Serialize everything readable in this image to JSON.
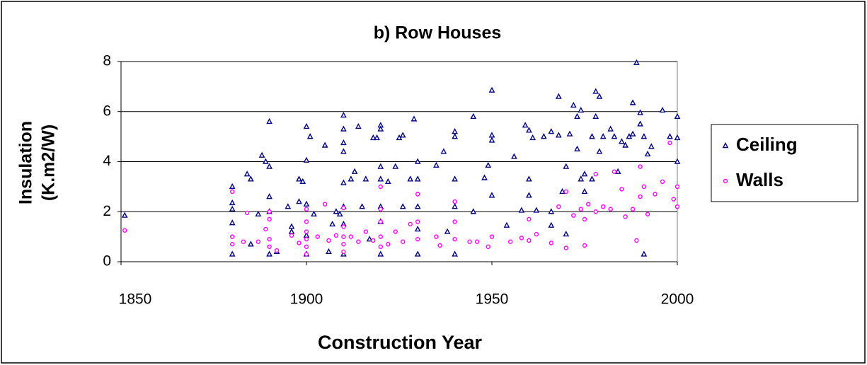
{
  "chart_data": {
    "type": "scatter",
    "title": "b) Row Houses",
    "xlabel": "Construction Year",
    "ylabel": [
      "Insulation",
      "(K.m2/W)"
    ],
    "xlim": [
      1850,
      2000
    ],
    "xticks": [
      1850,
      1900,
      1950,
      2000
    ],
    "ylim": [
      0,
      8
    ],
    "yticks": [
      0,
      2,
      4,
      6,
      8
    ],
    "grid": true,
    "legend": "right",
    "series": [
      {
        "name": "Ceiling",
        "color": "#000080",
        "marker": "triangle",
        "x": [
          1851,
          1880,
          1880,
          1880,
          1880,
          1880,
          1884,
          1885,
          1885,
          1887,
          1888,
          1889,
          1890,
          1890,
          1890,
          1890,
          1890,
          1892,
          1895,
          1896,
          1896,
          1898,
          1898,
          1899,
          1900,
          1900,
          1900,
          1900,
          1900,
          1901,
          1902,
          1905,
          1906,
          1907,
          1908,
          1909,
          1910,
          1910,
          1910,
          1910,
          1910,
          1910,
          1910,
          1910,
          1912,
          1913,
          1914,
          1915,
          1916,
          1917,
          1918,
          1919,
          1920,
          1920,
          1920,
          1920,
          1920,
          1920,
          1920,
          1922,
          1924,
          1925,
          1926,
          1926,
          1928,
          1929,
          1930,
          1930,
          1930,
          1930,
          1930,
          1935,
          1937,
          1938,
          1940,
          1940,
          1940,
          1940,
          1940,
          1945,
          1945,
          1948,
          1949,
          1950,
          1950,
          1950,
          1950,
          1954,
          1956,
          1958,
          1959,
          1960,
          1960,
          1960,
          1961,
          1962,
          1964,
          1966,
          1966,
          1966,
          1968,
          1968,
          1969,
          1970,
          1970,
          1971,
          1972,
          1973,
          1973,
          1974,
          1974,
          1975,
          1975,
          1977,
          1977,
          1978,
          1978,
          1979,
          1979,
          1980,
          1982,
          1983,
          1984,
          1985,
          1986,
          1987,
          1988,
          1988,
          1989,
          1990,
          1990,
          1991,
          1991,
          1992,
          1993,
          1996,
          1998,
          2000,
          2000,
          2000
        ],
        "values": [
          1.85,
          3.0,
          2.35,
          2.1,
          1.55,
          0.3,
          3.5,
          3.3,
          0.7,
          1.9,
          4.25,
          4.0,
          5.6,
          3.8,
          2.6,
          2.0,
          0.3,
          0.4,
          2.2,
          1.4,
          1.2,
          3.3,
          2.4,
          3.2,
          5.4,
          4.05,
          2.3,
          1.05,
          0.3,
          5.0,
          1.9,
          4.65,
          0.4,
          1.5,
          2.0,
          1.9,
          5.85,
          5.3,
          4.75,
          4.4,
          3.15,
          2.2,
          1.5,
          0.3,
          3.3,
          3.6,
          5.4,
          2.2,
          3.3,
          0.9,
          4.95,
          4.95,
          5.45,
          5.3,
          3.8,
          3.3,
          2.2,
          1.6,
          0.3,
          3.2,
          3.8,
          4.95,
          5.05,
          2.2,
          3.3,
          5.7,
          4.0,
          3.3,
          2.2,
          1.3,
          0.3,
          3.85,
          4.4,
          1.2,
          5.2,
          5.0,
          3.3,
          2.2,
          0.3,
          5.8,
          2.0,
          3.35,
          3.85,
          6.85,
          5.05,
          4.85,
          2.65,
          1.45,
          4.2,
          2.05,
          5.45,
          5.25,
          3.3,
          2.65,
          4.95,
          2.05,
          5.0,
          5.2,
          2.0,
          1.45,
          6.6,
          5.05,
          2.8,
          3.8,
          1.1,
          5.1,
          6.25,
          5.8,
          4.5,
          6.05,
          3.3,
          3.5,
          2.8,
          5.0,
          3.3,
          6.8,
          5.8,
          6.6,
          4.4,
          5.0,
          5.3,
          5.0,
          3.6,
          4.8,
          4.65,
          5.0,
          6.35,
          5.1,
          7.95,
          5.5,
          5.95,
          5.0,
          0.3,
          4.3,
          4.6,
          6.05,
          5.0,
          5.8,
          4.95,
          4.0
        ]
      },
      {
        "name": "Walls",
        "color": "#ff00ff",
        "marker": "circle",
        "x": [
          1851,
          1880,
          1880,
          1880,
          1883,
          1884,
          1887,
          1889,
          1890,
          1890,
          1890,
          1890,
          1892,
          1896,
          1898,
          1900,
          1900,
          1900,
          1900,
          1900,
          1900,
          1903,
          1905,
          1906,
          1908,
          1910,
          1910,
          1910,
          1910,
          1910,
          1912,
          1914,
          1916,
          1918,
          1920,
          1920,
          1920,
          1920,
          1920,
          1922,
          1924,
          1926,
          1928,
          1930,
          1930,
          1930,
          1935,
          1936,
          1940,
          1940,
          1940,
          1944,
          1946,
          1949,
          1950,
          1955,
          1958,
          1960,
          1960,
          1962,
          1966,
          1968,
          1970,
          1970,
          1972,
          1974,
          1975,
          1975,
          1976,
          1978,
          1978,
          1980,
          1982,
          1983,
          1985,
          1986,
          1988,
          1989,
          1990,
          1990,
          1991,
          1992,
          1994,
          1996,
          1998,
          1999,
          2000,
          2000
        ],
        "values": [
          1.25,
          2.8,
          1.0,
          0.7,
          0.8,
          1.95,
          0.8,
          1.3,
          2.0,
          1.7,
          0.9,
          0.6,
          0.45,
          1.05,
          0.75,
          2.1,
          1.6,
          1.2,
          0.9,
          0.6,
          0.3,
          1.0,
          2.3,
          0.85,
          1.05,
          2.15,
          1.4,
          1.0,
          0.7,
          0.4,
          1.0,
          0.8,
          1.2,
          0.85,
          3.0,
          2.1,
          1.6,
          1.0,
          0.6,
          0.7,
          1.2,
          0.8,
          1.5,
          2.7,
          1.6,
          0.9,
          1.0,
          0.65,
          2.4,
          1.6,
          0.9,
          0.8,
          0.8,
          0.6,
          1.0,
          0.8,
          0.95,
          1.7,
          0.85,
          1.1,
          0.75,
          2.2,
          2.8,
          0.55,
          1.85,
          2.1,
          0.65,
          1.7,
          2.3,
          3.5,
          2.0,
          2.2,
          2.1,
          3.6,
          2.9,
          1.8,
          2.1,
          0.85,
          3.8,
          2.6,
          3.0,
          1.9,
          2.7,
          3.2,
          4.75,
          2.5,
          3.0,
          2.2
        ]
      }
    ]
  }
}
